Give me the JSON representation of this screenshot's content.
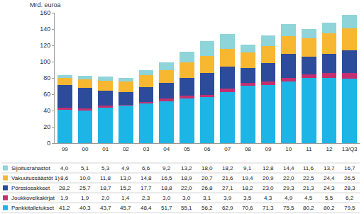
{
  "chart_data": {
    "type": "bar",
    "stacked": true,
    "grid": false,
    "y_label": "Mrd. euroa",
    "categories": [
      "99",
      "00",
      "01",
      "02",
      "03",
      "04",
      "05",
      "06",
      "07",
      "08",
      "09",
      "10",
      "11",
      "12",
      "13/Q3"
    ],
    "ylim": [
      0,
      160
    ],
    "yticks": [
      0,
      20,
      40,
      60,
      80,
      100,
      120,
      140,
      160
    ],
    "series": [
      {
        "name": "Pankkitalletukset",
        "color": "#1db5e6",
        "values": [
          41.2,
          40.3,
          43.7,
          45.7,
          48.4,
          51.7,
          55.1,
          56.2,
          62.9,
          70.6,
          71.3,
          75.5,
          80.2,
          80.2,
          79.5
        ],
        "value_labels": [
          "41,2",
          "40,3",
          "43,7",
          "45,7",
          "48,4",
          "51,7",
          "55,1",
          "56,2",
          "62,9",
          "70,6",
          "71,3",
          "75,5",
          "80,2",
          "80,2",
          "79,5"
        ]
      },
      {
        "name": "Joukkovelkakirjat",
        "color": "#c4306f",
        "values": [
          1.9,
          1.9,
          2.0,
          1.4,
          2.3,
          3.0,
          3.0,
          3.1,
          3.9,
          3.5,
          4.3,
          4.9,
          4.5,
          5.5,
          6.2
        ],
        "value_labels": [
          "1,9",
          "1,9",
          "2,0",
          "1,4",
          "2,3",
          "3,0",
          "3,0",
          "3,1",
          "3,9",
          "3,5",
          "4,3",
          "4,9",
          "4,5",
          "5,5",
          "6,2"
        ]
      },
      {
        "name": "Pörssiosakkeet",
        "color": "#2d4b9b",
        "values": [
          28.2,
          25.7,
          18.7,
          15.2,
          17.7,
          18.8,
          22.0,
          26.8,
          27.1,
          18.2,
          23.0,
          29.3,
          21.3,
          24.3,
          28.3
        ],
        "value_labels": [
          "28,2",
          "25,7",
          "18,7",
          "15,2",
          "17,7",
          "18,8",
          "22,0",
          "26,8",
          "27,1",
          "18,2",
          "23,0",
          "29,3",
          "21,3",
          "24,3",
          "28,3"
        ]
      },
      {
        "name": "Vakuutussäästöt 1)",
        "color": "#f7b731",
        "values": [
          8.6,
          10.0,
          11.8,
          13.0,
          14.8,
          16.5,
          18.9,
          20.7,
          21.6,
          19.4,
          20.9,
          22.0,
          22.5,
          24.4,
          26.5
        ],
        "value_labels": [
          "8,6",
          "10,0",
          "11,8",
          "13,0",
          "14,8",
          "16,5",
          "18,9",
          "20,7",
          "21,6",
          "19,4",
          "20,9",
          "22,0",
          "22,5",
          "24,4",
          "26,5"
        ]
      },
      {
        "name": "Sijoitusrahastot",
        "color": "#8fd4d8",
        "values": [
          4.0,
          5.1,
          5.3,
          4.9,
          6.6,
          9.2,
          13.2,
          18.0,
          18.2,
          9.1,
          12.8,
          14.4,
          11.6,
          13.7,
          16.7
        ],
        "value_labels": [
          "4,0",
          "5,1",
          "5,3",
          "4,9",
          "6,6",
          "9,2",
          "13,2",
          "18,0",
          "18,2",
          "9,1",
          "12,8",
          "14,4",
          "11,6",
          "13,7",
          "16,7"
        ]
      }
    ]
  }
}
